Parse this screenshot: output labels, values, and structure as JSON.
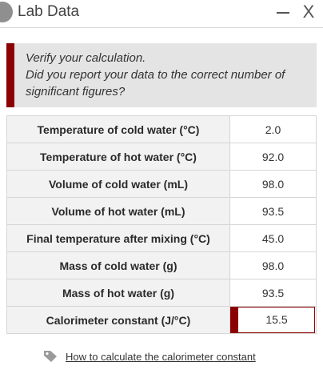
{
  "window": {
    "title": "Lab Data",
    "minimize_label": "—",
    "close_label": "X"
  },
  "callout": {
    "line1": "Verify your calculation.",
    "line2": "Did you report your data to the correct number of significant figures?",
    "accent_color": "#8b0000"
  },
  "table": {
    "rows": [
      {
        "label": "Temperature of cold water (°C)",
        "value": "2.0"
      },
      {
        "label": "Temperature of hot water (°C)",
        "value": "92.0"
      },
      {
        "label": "Volume of cold water (mL)",
        "value": "98.0"
      },
      {
        "label": "Volume of hot water (mL)",
        "value": "93.5"
      },
      {
        "label": "Final temperature after mixing (°C)",
        "value": "45.0"
      },
      {
        "label": "Mass of cold water (g)",
        "value": "98.0"
      },
      {
        "label": "Mass of hot water (g)",
        "value": "93.5"
      },
      {
        "label": "Calorimeter constant (J/°C)",
        "value": "15.5"
      }
    ]
  },
  "help": {
    "icon": "tag-icon",
    "link_text": "How to calculate the calorimeter constant"
  }
}
